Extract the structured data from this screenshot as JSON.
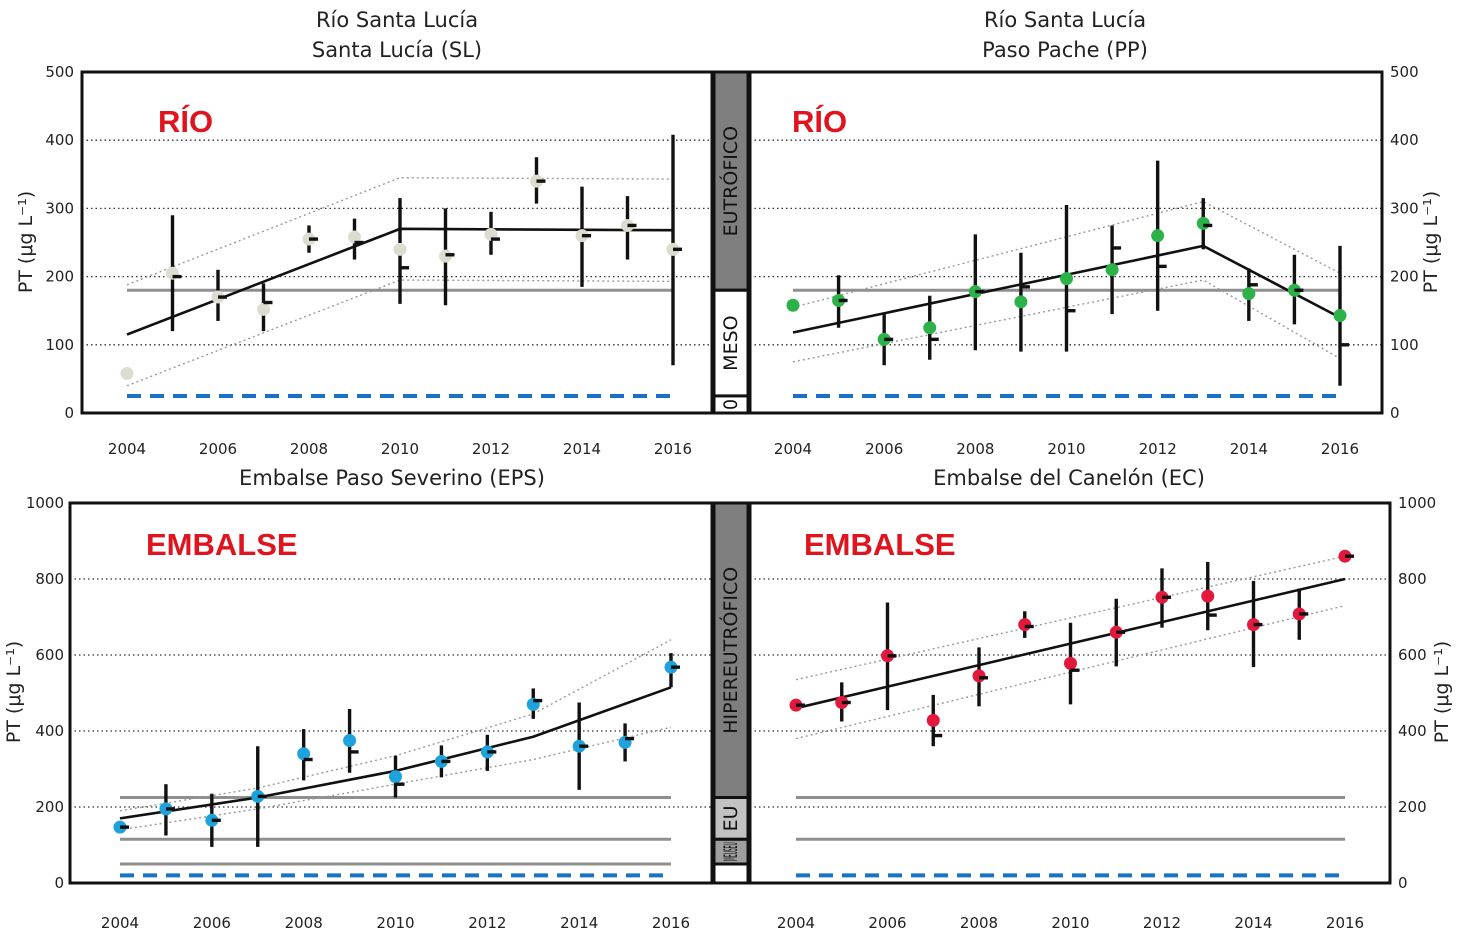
{
  "chart_data": [
    {
      "type": "scatter",
      "title_lines": [
        "Río Santa Lucía",
        "Santa Lucía (SL)"
      ],
      "tag": "RÍO",
      "ylabel": "PT (μg L⁻¹)",
      "ylabel_side": "left",
      "ylim": [
        0,
        500
      ],
      "yticks": [
        0,
        100,
        200,
        300,
        400,
        500
      ],
      "xlim": [
        2004,
        2016
      ],
      "xticks": [
        2004,
        2006,
        2008,
        2010,
        2012,
        2014,
        2016
      ],
      "colors": {
        "point": "#dcdcd0",
        "trend": "#111111",
        "threshold": "#8f8f8f",
        "baseline": "#1a72c4"
      },
      "points": [
        {
          "x": 2004,
          "y": 58
        },
        {
          "x": 2005,
          "y": 205,
          "lo": 120,
          "hi": 290,
          "median": 200
        },
        {
          "x": 2006,
          "y": 170,
          "lo": 135,
          "hi": 210,
          "median": 170
        },
        {
          "x": 2007,
          "y": 152,
          "lo": 120,
          "hi": 190,
          "median": 162
        },
        {
          "x": 2008,
          "y": 255,
          "lo": 235,
          "hi": 275,
          "median": 255
        },
        {
          "x": 2009,
          "y": 258,
          "lo": 225,
          "hi": 285,
          "median": 250
        },
        {
          "x": 2010,
          "y": 240,
          "lo": 160,
          "hi": 315,
          "median": 213
        },
        {
          "x": 2011,
          "y": 230,
          "lo": 158,
          "hi": 300,
          "median": 232
        },
        {
          "x": 2012,
          "y": 262,
          "lo": 232,
          "hi": 295,
          "median": 255
        },
        {
          "x": 2013,
          "y": 340,
          "lo": 307,
          "hi": 375,
          "median": 340
        },
        {
          "x": 2014,
          "y": 260,
          "lo": 185,
          "hi": 332,
          "median": 260
        },
        {
          "x": 2015,
          "y": 275,
          "lo": 225,
          "hi": 318,
          "median": 275
        },
        {
          "x": 2016,
          "y": 240,
          "lo": 70,
          "hi": 408,
          "median": 240
        }
      ],
      "trend": [
        [
          2004,
          115
        ],
        [
          2010,
          270
        ],
        [
          2016,
          268
        ]
      ],
      "confidence_bands": [
        [
          [
            2004,
            188
          ],
          [
            2010,
            345
          ],
          [
            2016,
            343
          ]
        ],
        [
          [
            2004,
            40
          ],
          [
            2010,
            195
          ],
          [
            2016,
            193
          ]
        ]
      ],
      "thresholds": [
        180
      ],
      "baseline": 25
    },
    {
      "type": "scatter",
      "title_lines": [
        "Río Santa Lucía",
        "Paso Pache (PP)"
      ],
      "tag": "RÍO",
      "ylabel": "PT (μg L⁻¹)",
      "ylabel_side": "right",
      "ylim": [
        0,
        500
      ],
      "yticks": [
        0,
        100,
        200,
        300,
        400,
        500
      ],
      "xlim": [
        2004,
        2016
      ],
      "xticks": [
        2004,
        2006,
        2008,
        2010,
        2012,
        2014,
        2016
      ],
      "colors": {
        "point": "#2db24a",
        "trend": "#111111",
        "threshold": "#8f8f8f",
        "baseline": "#1a72c4"
      },
      "points": [
        {
          "x": 2004,
          "y": 158
        },
        {
          "x": 2005,
          "y": 165,
          "lo": 125,
          "hi": 202,
          "median": 165
        },
        {
          "x": 2006,
          "y": 108,
          "lo": 70,
          "hi": 145,
          "median": 108
        },
        {
          "x": 2007,
          "y": 125,
          "lo": 78,
          "hi": 172,
          "median": 108
        },
        {
          "x": 2008,
          "y": 178,
          "lo": 92,
          "hi": 262,
          "median": 178
        },
        {
          "x": 2009,
          "y": 163,
          "lo": 90,
          "hi": 235,
          "median": 185
        },
        {
          "x": 2010,
          "y": 197,
          "lo": 90,
          "hi": 305,
          "median": 150
        },
        {
          "x": 2011,
          "y": 210,
          "lo": 145,
          "hi": 275,
          "median": 242
        },
        {
          "x": 2012,
          "y": 260,
          "lo": 150,
          "hi": 370,
          "median": 215
        },
        {
          "x": 2013,
          "y": 278,
          "lo": 240,
          "hi": 315,
          "median": 275
        },
        {
          "x": 2014,
          "y": 175,
          "lo": 135,
          "hi": 212,
          "median": 188
        },
        {
          "x": 2015,
          "y": 180,
          "lo": 130,
          "hi": 232,
          "median": 180
        },
        {
          "x": 2016,
          "y": 143,
          "lo": 40,
          "hi": 245,
          "median": 100
        }
      ],
      "trend": [
        [
          2004,
          118
        ],
        [
          2013,
          245
        ],
        [
          2016,
          140
        ]
      ],
      "confidence_bands": [
        [
          [
            2004,
            155
          ],
          [
            2013,
            310
          ],
          [
            2016,
            205
          ]
        ],
        [
          [
            2004,
            75
          ],
          [
            2013,
            195
          ],
          [
            2016,
            80
          ]
        ]
      ],
      "thresholds": [
        180
      ],
      "baseline": 25
    },
    {
      "type": "scatter",
      "title_lines": [
        "Embalse Paso Severino (EPS)"
      ],
      "tag": "EMBALSE",
      "ylabel": "PT (μg L⁻¹)",
      "ylabel_side": "left",
      "ylim": [
        0,
        1000
      ],
      "yticks": [
        0,
        200,
        400,
        600,
        800,
        1000
      ],
      "xlim": [
        2004,
        2016
      ],
      "xticks": [
        2004,
        2006,
        2008,
        2010,
        2012,
        2014,
        2016
      ],
      "colors": {
        "point": "#1ea2dc",
        "trend": "#111111",
        "threshold": "#8f8f8f",
        "baseline": "#1a72c4"
      },
      "points": [
        {
          "x": 2004,
          "y": 147,
          "median": 147
        },
        {
          "x": 2005,
          "y": 195,
          "lo": 125,
          "hi": 260,
          "median": 195
        },
        {
          "x": 2006,
          "y": 165,
          "lo": 95,
          "hi": 235,
          "median": 165
        },
        {
          "x": 2007,
          "y": 228,
          "lo": 95,
          "hi": 360,
          "median": 228
        },
        {
          "x": 2008,
          "y": 340,
          "lo": 270,
          "hi": 405,
          "median": 325
        },
        {
          "x": 2009,
          "y": 375,
          "lo": 290,
          "hi": 458,
          "median": 345
        },
        {
          "x": 2010,
          "y": 280,
          "lo": 225,
          "hi": 335,
          "median": 260
        },
        {
          "x": 2011,
          "y": 320,
          "lo": 278,
          "hi": 362,
          "median": 320
        },
        {
          "x": 2012,
          "y": 345,
          "lo": 295,
          "hi": 390,
          "median": 345
        },
        {
          "x": 2013,
          "y": 470,
          "lo": 432,
          "hi": 512,
          "median": 480
        },
        {
          "x": 2014,
          "y": 360,
          "lo": 245,
          "hi": 475,
          "median": 360
        },
        {
          "x": 2015,
          "y": 370,
          "lo": 320,
          "hi": 420,
          "median": 380
        },
        {
          "x": 2016,
          "y": 568,
          "lo": 515,
          "hi": 605,
          "median": 568
        }
      ],
      "trend": [
        [
          2004,
          170
        ],
        [
          2007,
          225
        ],
        [
          2010,
          295
        ],
        [
          2013,
          385
        ],
        [
          2016,
          515
        ]
      ],
      "confidence_bands": [
        [
          [
            2004,
            190
          ],
          [
            2007,
            250
          ],
          [
            2010,
            335
          ],
          [
            2013,
            445
          ],
          [
            2016,
            640
          ]
        ],
        [
          [
            2004,
            140
          ],
          [
            2007,
            195
          ],
          [
            2010,
            260
          ],
          [
            2013,
            325
          ],
          [
            2016,
            410
          ]
        ]
      ],
      "thresholds": [
        225,
        115,
        50
      ],
      "baseline": 20
    },
    {
      "type": "scatter",
      "title_lines": [
        "Embalse del Canelón (EC)"
      ],
      "tag": "EMBALSE",
      "ylabel": "PT (μg L⁻¹)",
      "ylabel_side": "right",
      "ylim": [
        0,
        1000
      ],
      "yticks": [
        0,
        200,
        400,
        600,
        800,
        1000
      ],
      "xlim": [
        2004,
        2016
      ],
      "xticks": [
        2004,
        2006,
        2008,
        2010,
        2012,
        2014,
        2016
      ],
      "colors": {
        "point": "#e2183c",
        "trend": "#111111",
        "threshold": "#8f8f8f",
        "baseline": "#1a72c4"
      },
      "points": [
        {
          "x": 2004,
          "y": 468,
          "median": 468
        },
        {
          "x": 2005,
          "y": 475,
          "lo": 425,
          "hi": 528,
          "median": 475
        },
        {
          "x": 2006,
          "y": 598,
          "lo": 455,
          "hi": 738,
          "median": 598
        },
        {
          "x": 2007,
          "y": 428,
          "lo": 360,
          "hi": 495,
          "median": 388
        },
        {
          "x": 2008,
          "y": 545,
          "lo": 465,
          "hi": 620,
          "median": 540
        },
        {
          "x": 2009,
          "y": 680,
          "lo": 645,
          "hi": 715,
          "median": 675
        },
        {
          "x": 2010,
          "y": 578,
          "lo": 470,
          "hi": 685,
          "median": 560
        },
        {
          "x": 2011,
          "y": 660,
          "lo": 570,
          "hi": 748,
          "median": 660
        },
        {
          "x": 2012,
          "y": 752,
          "lo": 672,
          "hi": 828,
          "median": 752
        },
        {
          "x": 2013,
          "y": 755,
          "lo": 665,
          "hi": 845,
          "median": 705
        },
        {
          "x": 2014,
          "y": 680,
          "lo": 568,
          "hi": 795,
          "median": 680
        },
        {
          "x": 2015,
          "y": 708,
          "lo": 640,
          "hi": 775,
          "median": 708
        },
        {
          "x": 2016,
          "y": 860,
          "median": 860
        }
      ],
      "trend": [
        [
          2004,
          460
        ],
        [
          2016,
          800
        ]
      ],
      "confidence_bands": [
        [
          [
            2004,
            535
          ],
          [
            2016,
            860
          ]
        ],
        [
          [
            2004,
            380
          ],
          [
            2016,
            730
          ]
        ]
      ],
      "thresholds": [
        225,
        115
      ],
      "baseline": 20
    }
  ],
  "trophic_bands": {
    "top": [
      {
        "label": "EUTRÓFICO",
        "from": 180,
        "to": 500,
        "color": "#7f7f7f"
      },
      {
        "label": "MESO",
        "from": 25,
        "to": 180,
        "color": "#ffffff"
      },
      {
        "label": "0",
        "from": 0,
        "to": 25,
        "color": "#ffffff"
      }
    ],
    "bottom": [
      {
        "label": "HIPEREUTRÓFICO",
        "from": 225,
        "to": 1000,
        "color": "#7f7f7f"
      },
      {
        "label": "EU",
        "from": 115,
        "to": 225,
        "color": "#c2c2c2"
      },
      {
        "label": "MEUSEU",
        "from": 50,
        "to": 115,
        "color": "#9f9f9f"
      },
      {
        "label": "",
        "from": 0,
        "to": 50,
        "color": "#ffffff"
      }
    ]
  }
}
